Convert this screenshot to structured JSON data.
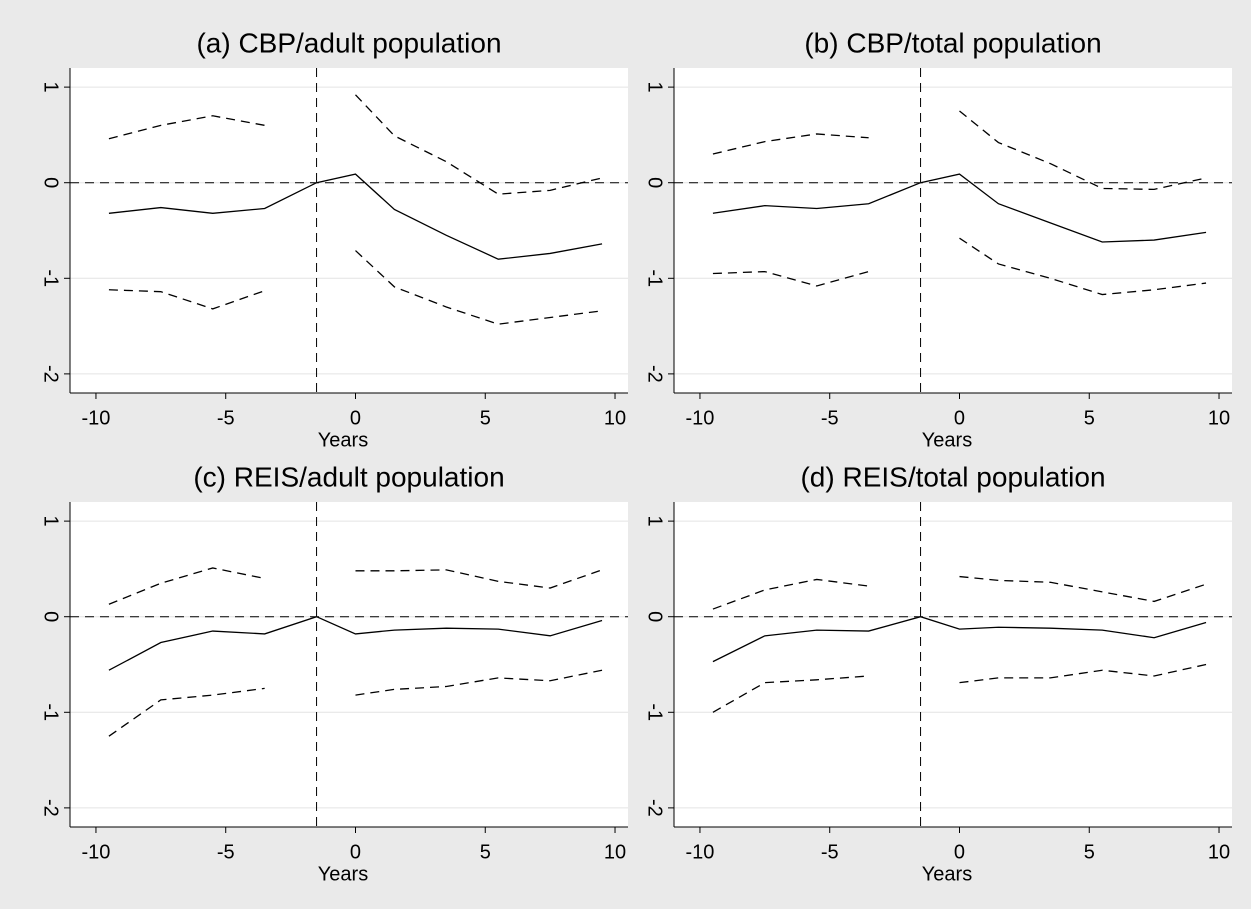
{
  "chart_data": [
    {
      "type": "line",
      "title": "(a) CBP/adult population",
      "xlabel": "Years",
      "x": [
        -9.5,
        -7.5,
        -5.5,
        -3.5,
        -1.5,
        0,
        1.5,
        3.5,
        5.5,
        7.5,
        9.5
      ],
      "series": [
        {
          "color": "#000000",
          "style": "solid",
          "values": [
            -0.32,
            -0.26,
            -0.32,
            -0.27,
            0,
            0.09,
            -0.28,
            -0.55,
            -0.8,
            -0.74,
            -0.64
          ]
        },
        {
          "color": "#000000",
          "style": "dashed",
          "values": [
            0.46,
            0.6,
            0.7,
            0.6,
            null,
            0.92,
            0.49,
            0.22,
            -0.12,
            -0.08,
            0.05
          ]
        },
        {
          "color": "#000000",
          "style": "dashed",
          "values": [
            -1.12,
            -1.14,
            -1.32,
            -1.13,
            null,
            -0.71,
            -1.09,
            -1.3,
            -1.48,
            -1.41,
            -1.34
          ]
        }
      ],
      "xlim": [
        -11,
        10.5
      ],
      "ylim": [
        -2.2,
        1.2
      ],
      "xticks": [
        -10,
        -5,
        0,
        5,
        10
      ],
      "yticks": [
        -2,
        -1,
        0,
        1
      ],
      "grid": true,
      "hline": 0,
      "vline": -1.5
    },
    {
      "type": "line",
      "title": "(b) CBP/total population",
      "xlabel": "Years",
      "x": [
        -9.5,
        -7.5,
        -5.5,
        -3.5,
        -1.5,
        0,
        1.5,
        3.5,
        5.5,
        7.5,
        9.5
      ],
      "series": [
        {
          "color": "#000000",
          "style": "solid",
          "values": [
            -0.32,
            -0.24,
            -0.27,
            -0.22,
            0,
            0.09,
            -0.22,
            -0.42,
            -0.62,
            -0.6,
            -0.52
          ]
        },
        {
          "color": "#000000",
          "style": "dashed",
          "values": [
            0.3,
            0.43,
            0.51,
            0.47,
            null,
            0.75,
            0.42,
            0.2,
            -0.06,
            -0.07,
            0.05
          ]
        },
        {
          "color": "#000000",
          "style": "dashed",
          "values": [
            -0.95,
            -0.93,
            -1.08,
            -0.93,
            null,
            -0.58,
            -0.85,
            -1.0,
            -1.17,
            -1.12,
            -1.05
          ]
        }
      ],
      "xlim": [
        -11,
        10.5
      ],
      "ylim": [
        -2.2,
        1.2
      ],
      "xticks": [
        -10,
        -5,
        0,
        5,
        10
      ],
      "yticks": [
        -2,
        -1,
        0,
        1
      ],
      "grid": true,
      "hline": 0,
      "vline": -1.5
    },
    {
      "type": "line",
      "title": "(c) REIS/adult population",
      "xlabel": "Years",
      "x": [
        -9.5,
        -7.5,
        -5.5,
        -3.5,
        -1.5,
        0,
        1.5,
        3.5,
        5.5,
        7.5,
        9.5
      ],
      "series": [
        {
          "color": "#000000",
          "style": "solid",
          "values": [
            -0.56,
            -0.27,
            -0.15,
            -0.18,
            0,
            -0.18,
            -0.14,
            -0.12,
            -0.13,
            -0.2,
            -0.04
          ]
        },
        {
          "color": "#000000",
          "style": "dashed",
          "values": [
            0.13,
            0.35,
            0.51,
            0.4,
            null,
            0.48,
            0.48,
            0.49,
            0.37,
            0.3,
            0.49
          ]
        },
        {
          "color": "#000000",
          "style": "dashed",
          "values": [
            -1.25,
            -0.87,
            -0.82,
            -0.75,
            null,
            -0.82,
            -0.76,
            -0.73,
            -0.64,
            -0.67,
            -0.56
          ]
        }
      ],
      "xlim": [
        -11,
        10.5
      ],
      "ylim": [
        -2.2,
        1.2
      ],
      "xticks": [
        -10,
        -5,
        0,
        5,
        10
      ],
      "yticks": [
        -2,
        -1,
        0,
        1
      ],
      "grid": true,
      "hline": 0,
      "vline": -1.5
    },
    {
      "type": "line",
      "title": "(d) REIS/total population",
      "xlabel": "Years",
      "x": [
        -9.5,
        -7.5,
        -5.5,
        -3.5,
        -1.5,
        0,
        1.5,
        3.5,
        5.5,
        7.5,
        9.5
      ],
      "series": [
        {
          "color": "#000000",
          "style": "solid",
          "values": [
            -0.47,
            -0.2,
            -0.14,
            -0.15,
            0,
            -0.13,
            -0.11,
            -0.12,
            -0.14,
            -0.22,
            -0.06
          ]
        },
        {
          "color": "#000000",
          "style": "dashed",
          "values": [
            0.08,
            0.28,
            0.39,
            0.32,
            null,
            0.42,
            0.38,
            0.36,
            0.26,
            0.16,
            0.34
          ]
        },
        {
          "color": "#000000",
          "style": "dashed",
          "values": [
            -1.0,
            -0.69,
            -0.66,
            -0.62,
            null,
            -0.69,
            -0.64,
            -0.64,
            -0.56,
            -0.62,
            -0.5
          ]
        }
      ],
      "xlim": [
        -11,
        10.5
      ],
      "ylim": [
        -2.2,
        1.2
      ],
      "xticks": [
        -10,
        -5,
        0,
        5,
        10
      ],
      "yticks": [
        -2,
        -1,
        0,
        1
      ],
      "grid": true,
      "hline": 0,
      "vline": -1.5
    }
  ]
}
